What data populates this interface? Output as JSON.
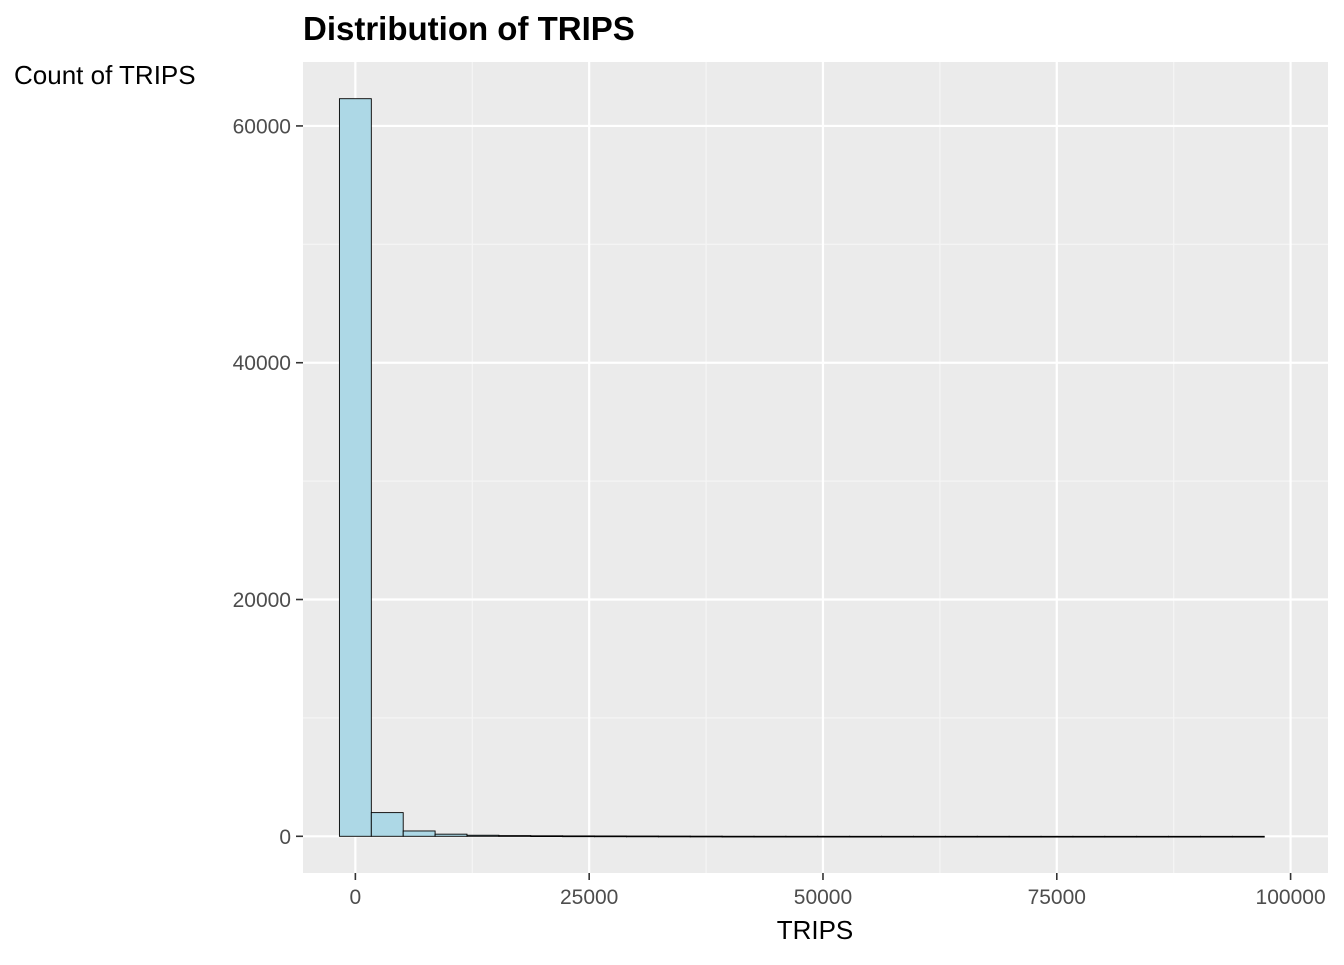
{
  "chart_data": {
    "type": "bar",
    "subtype": "histogram",
    "title": "Distribution of TRIPS",
    "xlabel": "TRIPS",
    "ylabel": "Count of TRIPS",
    "x_ticks": [
      0,
      25000,
      50000,
      75000,
      100000
    ],
    "x_tick_labels": [
      "0",
      "25000",
      "50000",
      "75000",
      "100000"
    ],
    "y_ticks": [
      0,
      20000,
      40000,
      60000
    ],
    "y_tick_labels": [
      "0",
      "20000",
      "40000",
      "60000"
    ],
    "xlim": [
      -5600,
      104000
    ],
    "ylim": [
      -3100,
      65400
    ],
    "bin_width": 3410,
    "bin_start": -1705,
    "counts": [
      62300,
      2000,
      450,
      180,
      90,
      60,
      45,
      35,
      30,
      25,
      20,
      15,
      8,
      6,
      5,
      4,
      3,
      3,
      2,
      2,
      2,
      1,
      1,
      1,
      1,
      1,
      1,
      1,
      1
    ],
    "grid": true,
    "legend": "none",
    "colors": {
      "panel_background": "#ebebeb",
      "grid_major": "#ffffff",
      "grid_minor": "#f5f5f5",
      "bar_fill": "#add8e6",
      "bar_outline": "#000000",
      "tick_label": "#4d4d4d",
      "tick_mark": "#333333",
      "text": "#000000"
    }
  }
}
